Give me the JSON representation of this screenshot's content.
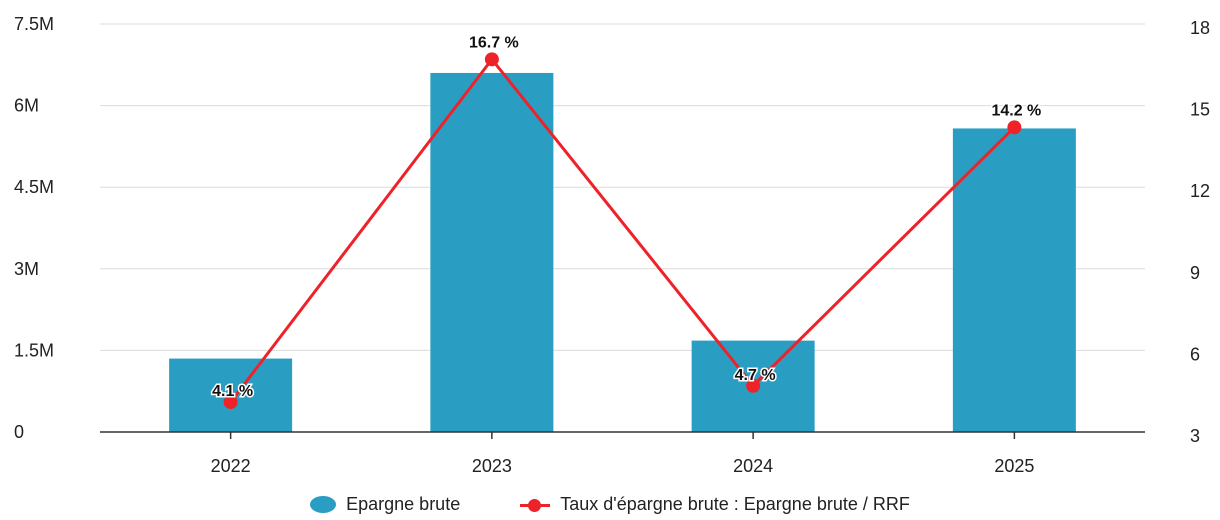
{
  "colors": {
    "bar": "#2a9ec2",
    "line": "#ee2229",
    "grid": "#dcdcdc",
    "axis": "#333333"
  },
  "chart_data": {
    "type": "bar",
    "categories": [
      "2022",
      "2023",
      "2024",
      "2025"
    ],
    "series": [
      {
        "name": "Epargne brute",
        "type": "bar",
        "axis": "left",
        "values": [
          1350000,
          6600000,
          1680000,
          5580000
        ]
      },
      {
        "name": "Taux d'épargne brute : Epargne brute / RRF",
        "type": "line",
        "axis": "right",
        "values": [
          4.1,
          16.7,
          4.7,
          14.2
        ],
        "labels": [
          "4.1 %",
          "16.7 %",
          "4.7 %",
          "14.2 %"
        ]
      }
    ],
    "y_left": {
      "ylim": [
        0,
        7500000
      ],
      "ticks": [
        0,
        1500000,
        3000000,
        4500000,
        6000000,
        7500000
      ],
      "tick_labels": [
        "0",
        "1.5M",
        "3M",
        "4.5M",
        "6M",
        "7.5M"
      ]
    },
    "y_right": {
      "ylim": [
        3,
        18
      ],
      "ticks": [
        3,
        6,
        9,
        12,
        15,
        18
      ],
      "tick_labels": [
        "3",
        "6",
        "9",
        "12",
        "15",
        "18"
      ]
    },
    "grid": true,
    "legend_position": "bottom"
  },
  "legend": {
    "bar_label": "Epargne brute",
    "line_label": "Taux d'épargne brute : Epargne brute / RRF"
  }
}
